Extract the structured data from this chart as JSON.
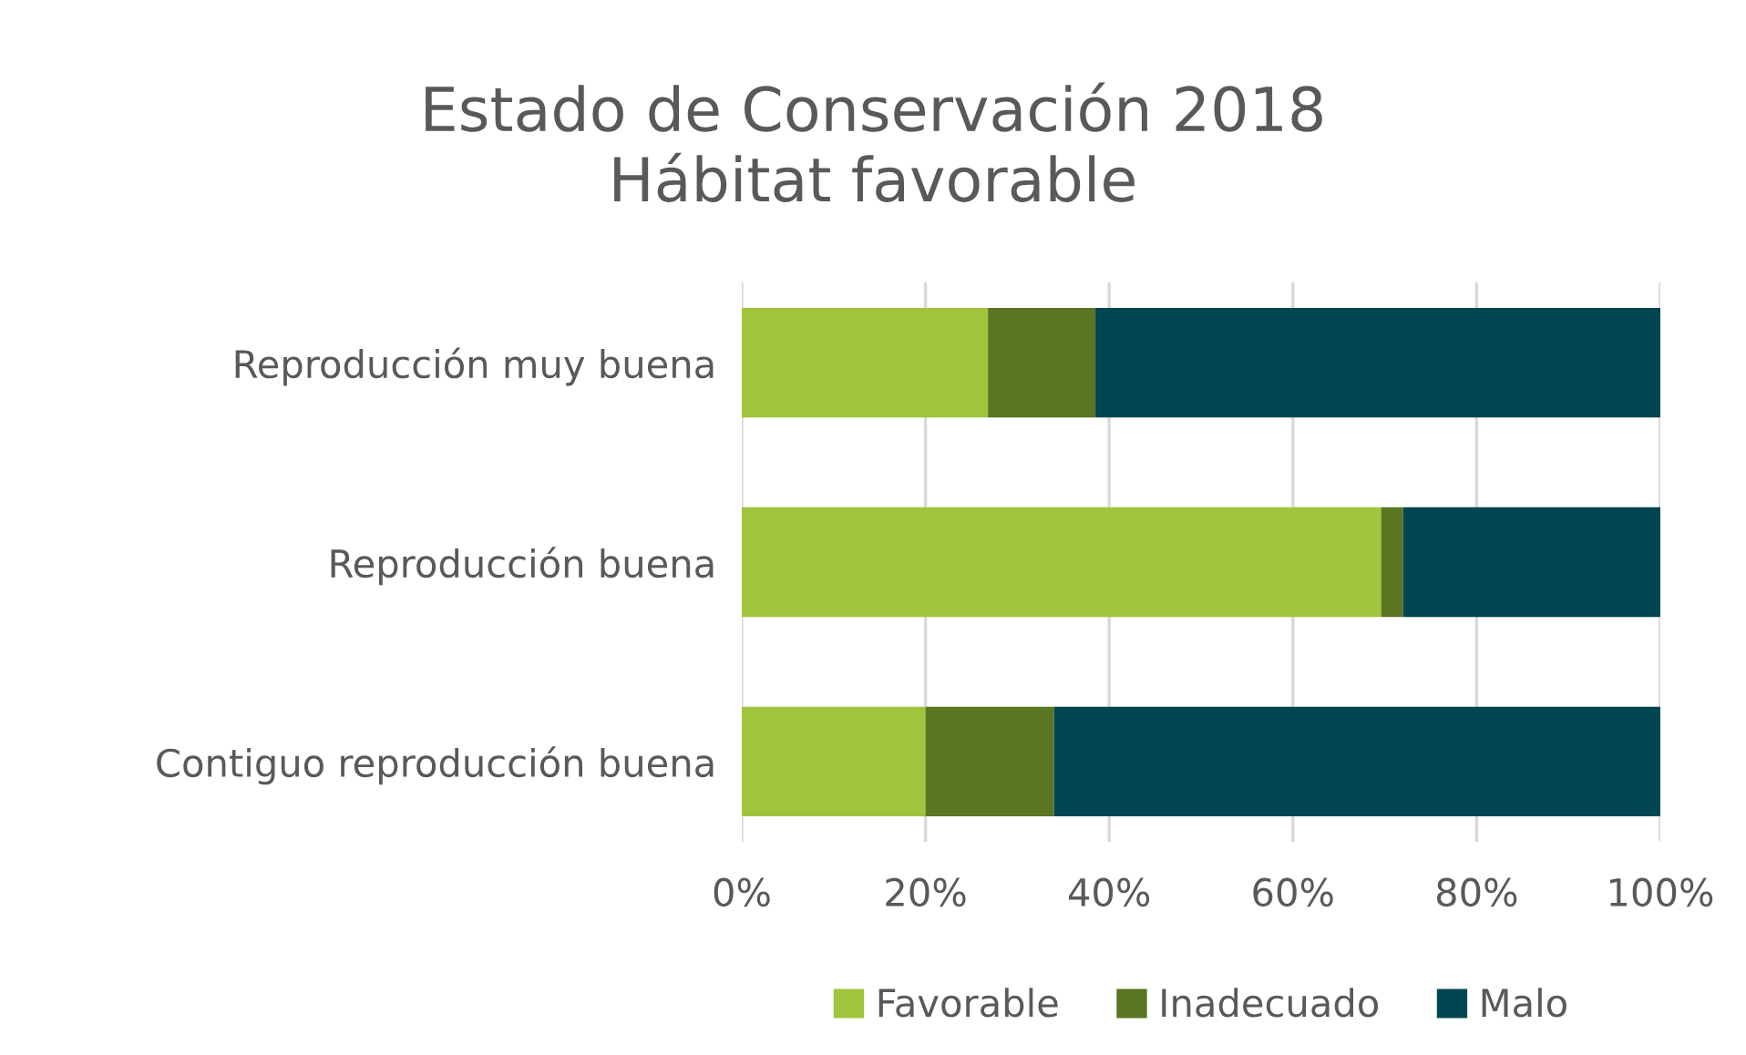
{
  "chart_data": {
    "type": "bar",
    "orientation": "horizontal",
    "stacked": true,
    "title": "Estado de Conservación 2018\nHábitat favorable",
    "categories": [
      "Reproducción muy buena",
      "Reproducción buena",
      "Contiguo reproducción buena"
    ],
    "series": [
      {
        "name": "Favorable",
        "color": "#a0c43c",
        "values": [
          26.8,
          69.6,
          20.0
        ]
      },
      {
        "name": "Inadecuado",
        "color": "#5a7623",
        "values": [
          11.7,
          2.4,
          14.0
        ]
      },
      {
        "name": "Malo",
        "color": "#004650",
        "values": [
          61.5,
          28.0,
          66.0
        ]
      }
    ],
    "xlim": [
      0,
      100
    ],
    "xticks": [
      {
        "value": 0,
        "label": "0%"
      },
      {
        "value": 20,
        "label": "20%"
      },
      {
        "value": 40,
        "label": "40%"
      },
      {
        "value": 60,
        "label": "60%"
      },
      {
        "value": 80,
        "label": "80%"
      },
      {
        "value": 100,
        "label": "100%"
      }
    ],
    "grid": "x",
    "legend": "bottom"
  }
}
